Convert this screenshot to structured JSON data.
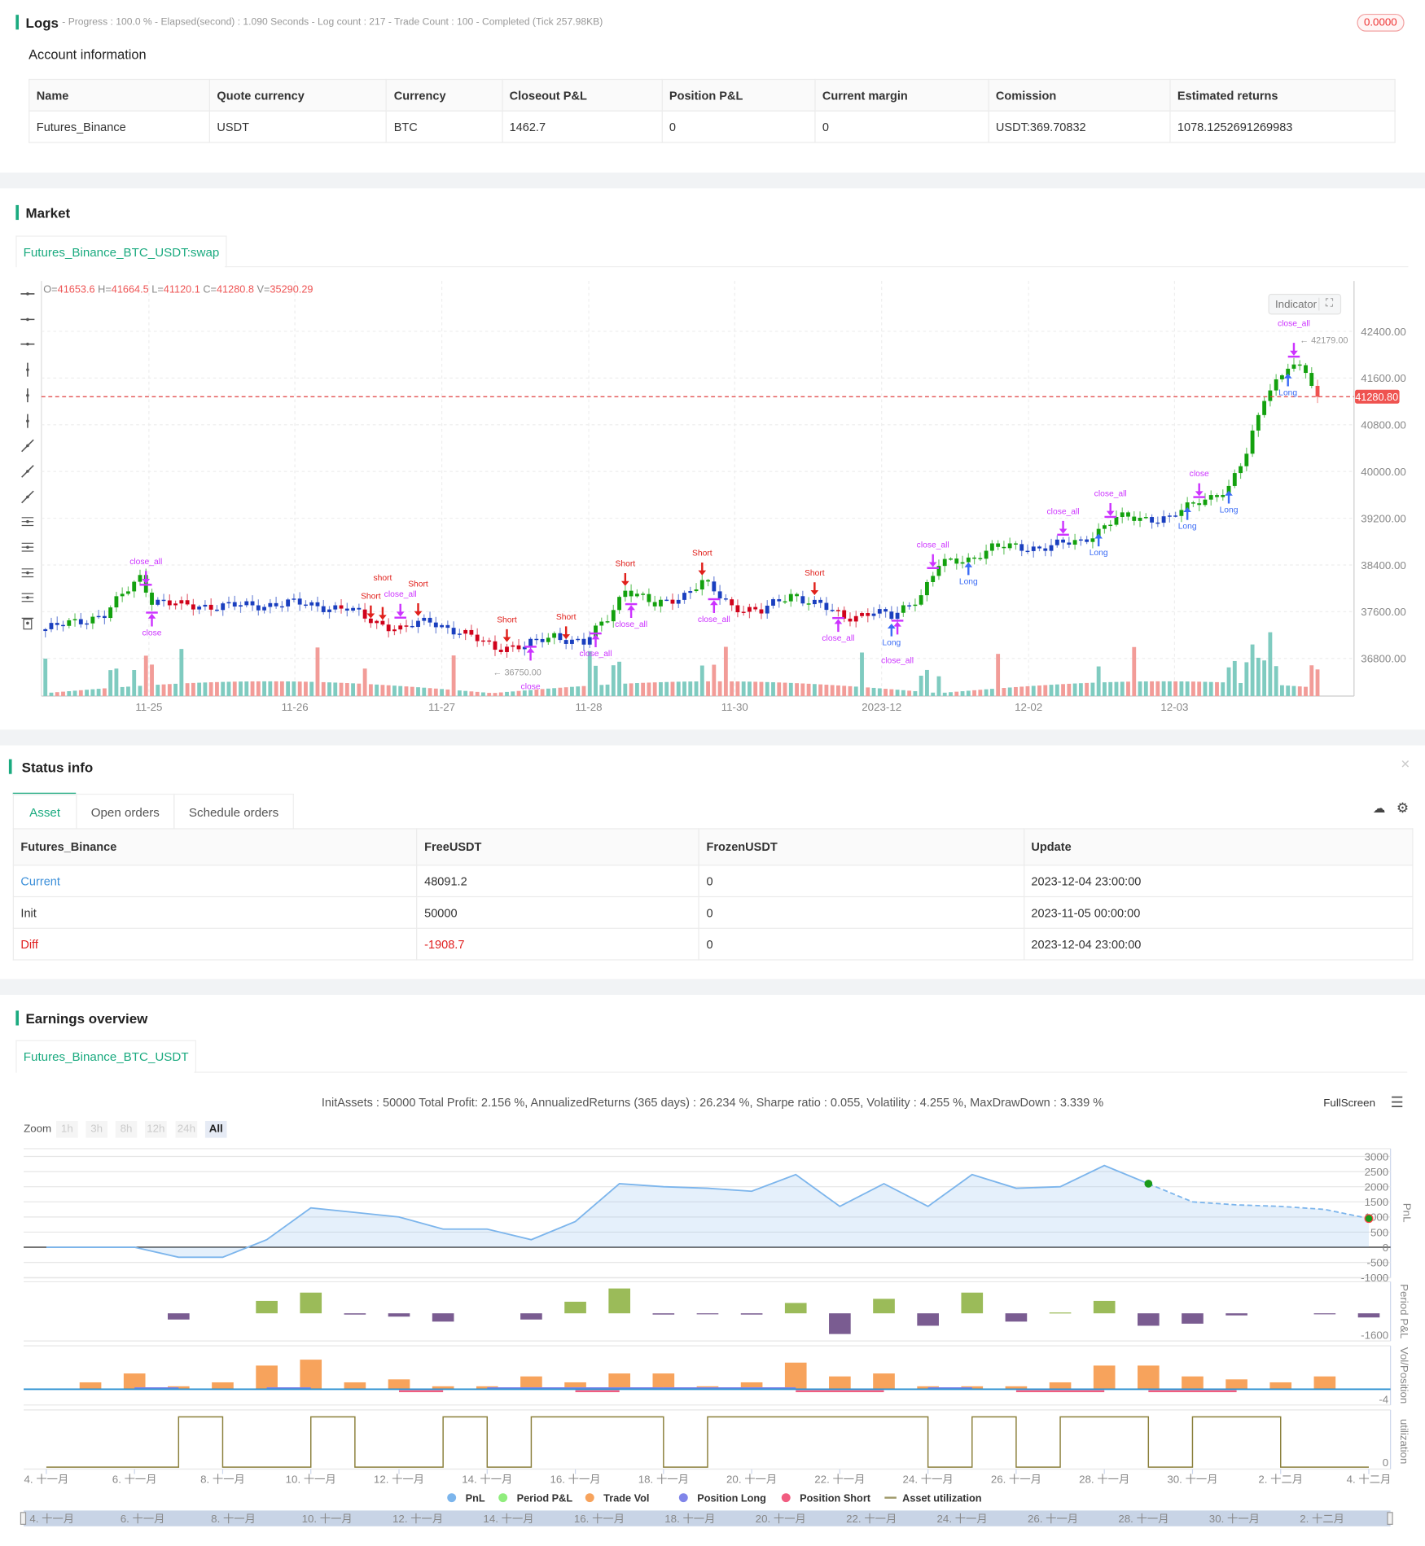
{
  "logs": {
    "title": "Logs",
    "summary": "- Progress : 100.0 % - Elapsed(second) : 1.090  Seconds - Log count : 217 - Trade Count : 100 - Completed (Tick 257.98KB)",
    "badge": "0.0000"
  },
  "account": {
    "title": "Account information",
    "headers": [
      "Name",
      "Quote currency",
      "Currency",
      "Closeout P&L",
      "Position P&L",
      "Current margin",
      "Comission",
      "Estimated returns"
    ],
    "row": [
      "Futures_Binance",
      "USDT",
      "BTC",
      "1462.7",
      "0",
      "0",
      "USDT:369.70832",
      "1078.1252691269983"
    ]
  },
  "market": {
    "title": "Market",
    "tab": "Futures_Binance_BTC_USDT:swap",
    "ohlc": {
      "o_label": "O=",
      "o": "41653.6",
      "h_label": "H=",
      "h": "41664.5",
      "l_label": "L=",
      "l": "41120.1",
      "c_label": "C=",
      "c": "41280.8",
      "v_label": "V=",
      "v": "35290.29"
    },
    "indicator_button": "Indicator",
    "last_price": "41280.80",
    "high_marker": "42179.00",
    "low_marker": "36750.00",
    "colors": {
      "up": "#13a10e",
      "down": "#d0021b",
      "neutral": "#1a3fbf",
      "vol_up": "#7fcbc0",
      "vol_down": "#f29c98",
      "signal_close": "#cc33ff",
      "signal_long": "#3b6cf5",
      "signal_short": "#e0201b"
    }
  },
  "chart_data": [
    {
      "type": "candlestick",
      "y_ticks": [
        "42400.00",
        "41600.00",
        "40800.00",
        "40000.00",
        "39200.00",
        "38400.00",
        "37600.00",
        "36800.00"
      ],
      "x_ticks": [
        "11-25",
        "11-26",
        "11-27",
        "11-28",
        "11-30",
        "2023-12",
        "12-02",
        "12-03"
      ],
      "close_trend": [
        [
          0,
          37300
        ],
        [
          10,
          37550
        ],
        [
          16,
          38200
        ],
        [
          18,
          37800
        ],
        [
          23,
          37700
        ],
        [
          35,
          37700
        ],
        [
          41,
          37750
        ],
        [
          51,
          37650
        ],
        [
          55,
          37450
        ],
        [
          60,
          37300
        ],
        [
          65,
          37450
        ],
        [
          71,
          37200
        ],
        [
          76,
          37000
        ],
        [
          81,
          37000
        ],
        [
          86,
          37200
        ],
        [
          91,
          37050
        ],
        [
          95,
          37500
        ],
        [
          98,
          38000
        ],
        [
          103,
          37700
        ],
        [
          108,
          37900
        ],
        [
          111,
          38100
        ],
        [
          116,
          37700
        ],
        [
          121,
          37600
        ],
        [
          126,
          37900
        ],
        [
          131,
          37700
        ],
        [
          135,
          37500
        ],
        [
          140,
          37600
        ],
        [
          143,
          37500
        ],
        [
          148,
          37900
        ],
        [
          151,
          38400
        ],
        [
          156,
          38500
        ],
        [
          160,
          38700
        ],
        [
          168,
          38700
        ],
        [
          175,
          38800
        ],
        [
          178,
          39000
        ],
        [
          181,
          39200
        ],
        [
          190,
          39200
        ],
        [
          195,
          39500
        ],
        [
          200,
          39700
        ],
        [
          203,
          40300
        ],
        [
          206,
          41300
        ],
        [
          210,
          41800
        ],
        [
          213,
          41700
        ],
        [
          215,
          41280
        ]
      ],
      "signals": [
        {
          "i": 17,
          "type": "close",
          "label": "close_all"
        },
        {
          "i": 18,
          "type": "close",
          "label": "close"
        },
        {
          "i": 55,
          "type": "short",
          "label": "Short"
        },
        {
          "i": 57,
          "type": "short",
          "label": "short"
        },
        {
          "i": 60,
          "type": "close",
          "label": "close_all"
        },
        {
          "i": 63,
          "type": "short",
          "label": "Short"
        },
        {
          "i": 78,
          "type": "short",
          "label": "Short"
        },
        {
          "i": 82,
          "type": "close",
          "label": "close"
        },
        {
          "i": 88,
          "type": "short",
          "label": "Short"
        },
        {
          "i": 93,
          "type": "close",
          "label": "close_all"
        },
        {
          "i": 98,
          "type": "short",
          "label": "Short"
        },
        {
          "i": 99,
          "type": "close",
          "label": "close_all"
        },
        {
          "i": 111,
          "type": "short",
          "label": "Short"
        },
        {
          "i": 113,
          "type": "close",
          "label": "close_all"
        },
        {
          "i": 130,
          "type": "short",
          "label": "Short"
        },
        {
          "i": 134,
          "type": "close",
          "label": "close_all"
        },
        {
          "i": 143,
          "type": "long",
          "label": "Long"
        },
        {
          "i": 144,
          "type": "close",
          "label": "close_all"
        },
        {
          "i": 150,
          "type": "close",
          "label": "close_all"
        },
        {
          "i": 156,
          "type": "long",
          "label": "Long"
        },
        {
          "i": 172,
          "type": "close",
          "label": "close_all"
        },
        {
          "i": 178,
          "type": "long",
          "label": "Long"
        },
        {
          "i": 180,
          "type": "close",
          "label": "close_all"
        },
        {
          "i": 193,
          "type": "long",
          "label": "Long"
        },
        {
          "i": 195,
          "type": "close",
          "label": "close"
        },
        {
          "i": 200,
          "type": "long",
          "label": "Long"
        },
        {
          "i": 211,
          "type": "close",
          "label": "close_all"
        },
        {
          "i": 210,
          "type": "long",
          "label": "Long"
        }
      ]
    },
    {
      "type": "line",
      "title": "PnL",
      "x_ticks": [
        "4. 十一月",
        "6. 十一月",
        "8. 十一月",
        "10. 十一月",
        "12. 十一月",
        "14. 十一月",
        "16. 十一月",
        "18. 十一月",
        "20. 十一月",
        "22. 十一月",
        "24. 十一月",
        "26. 十一月",
        "28. 十一月",
        "30. 十一月",
        "2. 十二月",
        "4. 十二月"
      ],
      "y_ticks": [
        "3000",
        "2500",
        "2000",
        "1500",
        "1000",
        "500",
        "0",
        "-500",
        "-1000"
      ],
      "pnl": [
        [
          0,
          0
        ],
        [
          2,
          0
        ],
        [
          3,
          -330
        ],
        [
          4,
          -330
        ],
        [
          5,
          250
        ],
        [
          6,
          1300
        ],
        [
          7,
          1150
        ],
        [
          8,
          1000
        ],
        [
          9,
          600
        ],
        [
          10,
          600
        ],
        [
          11,
          250
        ],
        [
          12,
          850
        ],
        [
          13,
          2100
        ],
        [
          14,
          2000
        ],
        [
          15,
          1950
        ],
        [
          16,
          1850
        ],
        [
          17,
          2400
        ],
        [
          18,
          1350
        ],
        [
          19,
          2100
        ],
        [
          20,
          1350
        ],
        [
          21,
          2400
        ],
        [
          22,
          1950
        ],
        [
          23,
          2000
        ],
        [
          24,
          2700
        ],
        [
          25,
          2100
        ],
        [
          26,
          1500
        ],
        [
          27,
          1400
        ],
        [
          28,
          1350
        ],
        [
          29,
          1250
        ],
        [
          30,
          950
        ]
      ],
      "period_pnl_label": "Period P&L",
      "period_pnl_min": "-1600",
      "period_pnl": [
        [
          3,
          -150
        ],
        [
          5,
          300
        ],
        [
          6,
          500
        ],
        [
          7,
          -30
        ],
        [
          8,
          -80
        ],
        [
          9,
          -200
        ],
        [
          11,
          -150
        ],
        [
          12,
          280
        ],
        [
          13,
          600
        ],
        [
          14,
          -30
        ],
        [
          15,
          -10
        ],
        [
          16,
          -30
        ],
        [
          17,
          250
        ],
        [
          18,
          -500
        ],
        [
          19,
          350
        ],
        [
          20,
          -300
        ],
        [
          21,
          500
        ],
        [
          22,
          -200
        ],
        [
          23,
          20
        ],
        [
          24,
          300
        ],
        [
          25,
          -300
        ],
        [
          26,
          -250
        ],
        [
          27,
          -50
        ],
        [
          29,
          -20
        ],
        [
          30,
          -100
        ]
      ],
      "vol_label": "Vol/Position",
      "vol_min": "-4",
      "trade_vol": [
        [
          1,
          7
        ],
        [
          2,
          16
        ],
        [
          3,
          3
        ],
        [
          4,
          7
        ],
        [
          5,
          24
        ],
        [
          6,
          30
        ],
        [
          7,
          7
        ],
        [
          8,
          10
        ],
        [
          9,
          3
        ],
        [
          10,
          3
        ],
        [
          11,
          13
        ],
        [
          12,
          7
        ],
        [
          13,
          16
        ],
        [
          14,
          16
        ],
        [
          15,
          3
        ],
        [
          16,
          7
        ],
        [
          17,
          27
        ],
        [
          18,
          13
        ],
        [
          19,
          16
        ],
        [
          20,
          3
        ],
        [
          21,
          3
        ],
        [
          22,
          3
        ],
        [
          23,
          7
        ],
        [
          24,
          24
        ],
        [
          25,
          24
        ],
        [
          26,
          13
        ],
        [
          27,
          10
        ],
        [
          28,
          7
        ],
        [
          29,
          13
        ]
      ],
      "util_label": "utilization",
      "util_min": "0",
      "utilization_high": [
        [
          3,
          4
        ],
        [
          6,
          7
        ],
        [
          9,
          10
        ],
        [
          11,
          14
        ],
        [
          15,
          20
        ],
        [
          21,
          22
        ],
        [
          23,
          25
        ],
        [
          26,
          28
        ]
      ],
      "legend": [
        {
          "name": "PnL",
          "color": "#7cb5ec"
        },
        {
          "name": "Period P&L",
          "color": "#90ed7d"
        },
        {
          "name": "Trade Vol",
          "color": "#f7a35c"
        },
        {
          "name": "Position Long",
          "color": "#8085e9"
        },
        {
          "name": "Position Short",
          "color": "#f15c80"
        },
        {
          "name": "Asset utilization",
          "color": "#a09a6a"
        }
      ]
    }
  ],
  "status": {
    "title": "Status info",
    "tabs": [
      "Asset",
      "Open orders",
      "Schedule orders"
    ],
    "headers": [
      "Futures_Binance",
      "FreeUSDT",
      "FrozenUSDT",
      "Update"
    ],
    "rows": [
      [
        "Current",
        "48091.2",
        "0",
        "2023-12-04 23:00:00"
      ],
      [
        "Init",
        "50000",
        "0",
        "2023-11-05 00:00:00"
      ],
      [
        "Diff",
        "-1908.7",
        "0",
        "2023-12-04 23:00:00"
      ]
    ]
  },
  "earnings": {
    "title": "Earnings overview",
    "tab": "Futures_Binance_BTC_USDT",
    "stats": "InitAssets : 50000 Total Profit: 2.156 %, AnnualizedReturns (365 days) : 26.234 %, Sharpe ratio : 0.055, Volatility : 4.255 %, MaxDrawDown : 3.339 %",
    "fullscreen": "FullScreen",
    "zoom_label": "Zoom",
    "zoom_options": [
      "1h",
      "3h",
      "8h",
      "12h",
      "24h",
      "All"
    ]
  }
}
